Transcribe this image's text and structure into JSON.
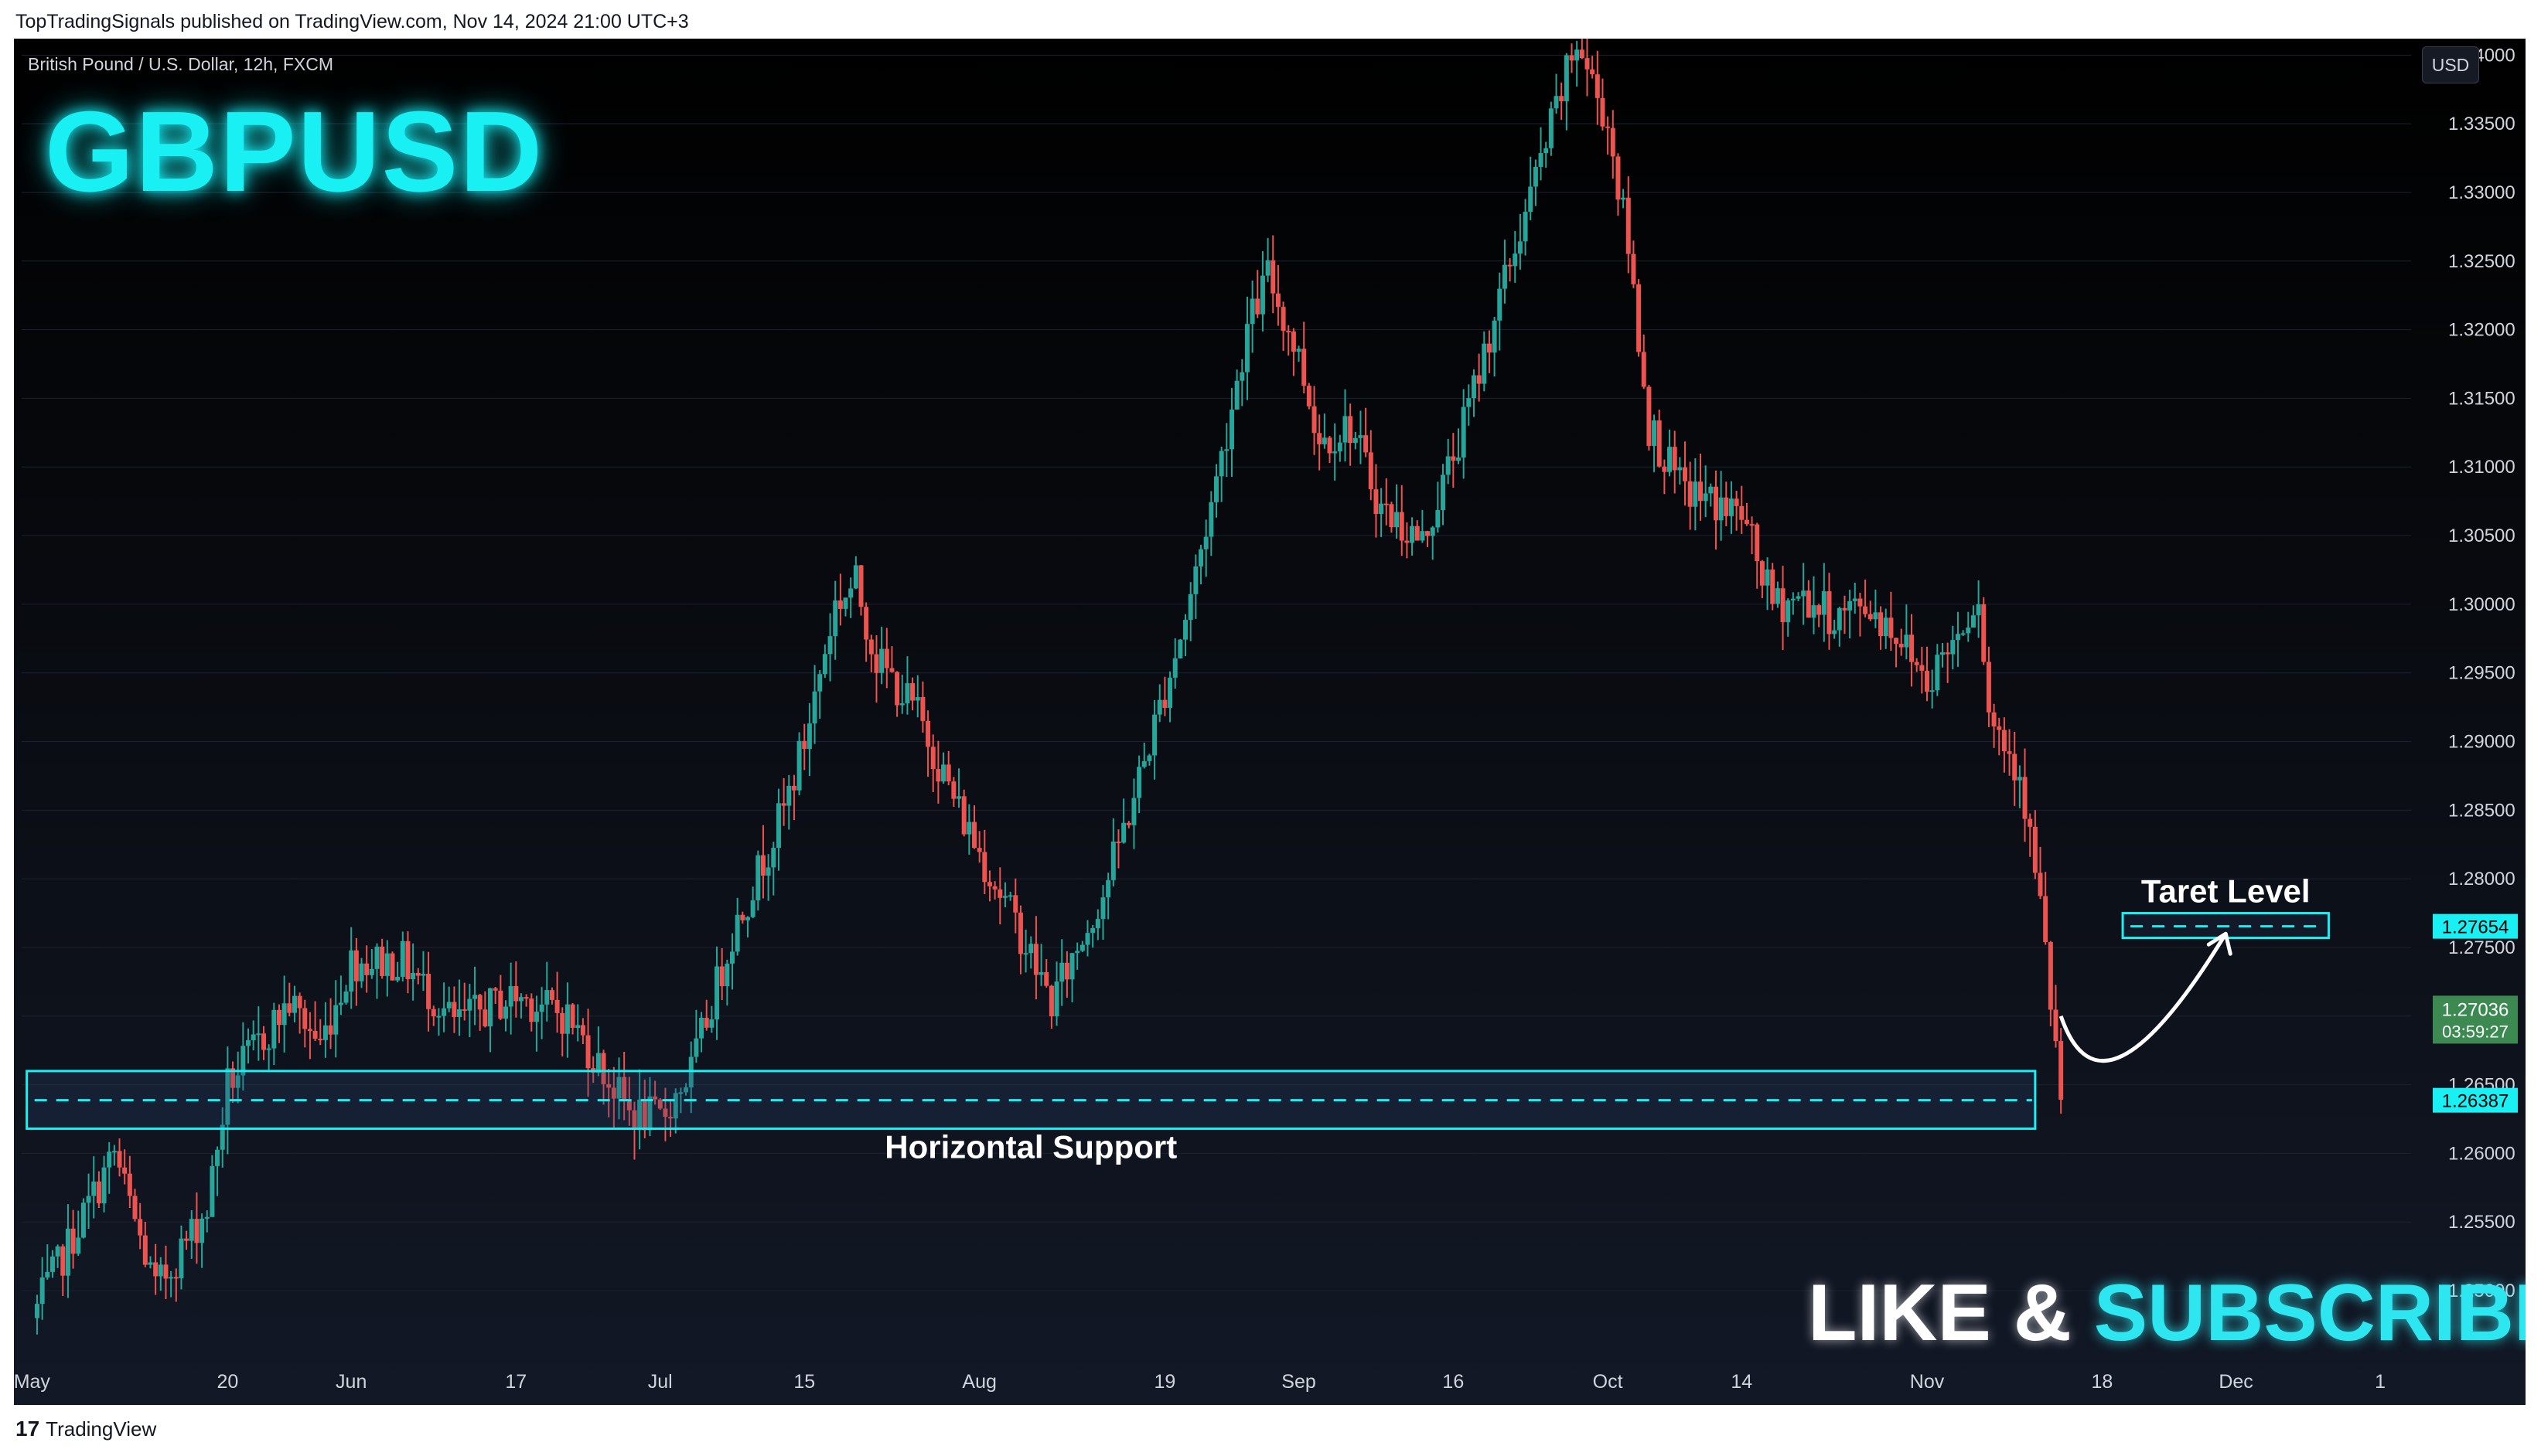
{
  "header": {
    "published": "TopTradingSignals published on TradingView.com, Nov 14, 2024 21:00 UTC+3"
  },
  "symbol_line": "British Pound / U.S. Dollar, 12h, FXCM",
  "big_title": "GBPUSD",
  "currency_button": "USD",
  "cta": {
    "part1": "LIKE & ",
    "part2": "SUBSCRIBE"
  },
  "footer": {
    "logo": "17",
    "brand": "TradingView"
  },
  "colors": {
    "up": "#26a69a",
    "down": "#ef5350",
    "accent": "#18f0f4",
    "background": "#0b0e15"
  },
  "chart_data": {
    "type": "candlestick",
    "title": "GBPUSD",
    "ylim": [
      1.2455,
      1.3412
    ],
    "y_ticks": [
      "1.34000",
      "1.33500",
      "1.33000",
      "1.32500",
      "1.32000",
      "1.31500",
      "1.31000",
      "1.30500",
      "1.30000",
      "1.29500",
      "1.29000",
      "1.28500",
      "1.28000",
      "1.27500",
      "1.27000",
      "1.26500",
      "1.26000",
      "1.25500",
      "1.25000"
    ],
    "x_ticks": [
      {
        "label": "May",
        "day": 0
      },
      {
        "label": "20",
        "day": 19
      },
      {
        "label": "Jun",
        "day": 31
      },
      {
        "label": "17",
        "day": 47
      },
      {
        "label": "Jul",
        "day": 61
      },
      {
        "label": "15",
        "day": 75
      },
      {
        "label": "Aug",
        "day": 92
      },
      {
        "label": "19",
        "day": 110
      },
      {
        "label": "Sep",
        "day": 123
      },
      {
        "label": "16",
        "day": 138
      },
      {
        "label": "Oct",
        "day": 153
      },
      {
        "label": "14",
        "day": 166
      },
      {
        "label": "Nov",
        "day": 184
      },
      {
        "label": "18",
        "day": 201
      },
      {
        "label": "Dec",
        "day": 214
      },
      {
        "label": "1",
        "day": 228
      }
    ],
    "x_range_days": [
      -1,
      231
    ],
    "key_points": [
      {
        "day": 0,
        "price": 1.248
      },
      {
        "day": 8,
        "price": 1.26
      },
      {
        "day": 12,
        "price": 1.25
      },
      {
        "day": 17,
        "price": 1.256
      },
      {
        "day": 19,
        "price": 1.265
      },
      {
        "day": 25,
        "price": 1.271
      },
      {
        "day": 28,
        "price": 1.268
      },
      {
        "day": 31,
        "price": 1.274
      },
      {
        "day": 36,
        "price": 1.274
      },
      {
        "day": 41,
        "price": 1.2695
      },
      {
        "day": 47,
        "price": 1.2715
      },
      {
        "day": 52,
        "price": 1.27
      },
      {
        "day": 58,
        "price": 1.263
      },
      {
        "day": 61,
        "price": 1.2625
      },
      {
        "day": 64,
        "price": 1.266
      },
      {
        "day": 68,
        "price": 1.276
      },
      {
        "day": 73,
        "price": 1.285
      },
      {
        "day": 75,
        "price": 1.29
      },
      {
        "day": 78,
        "price": 1.3
      },
      {
        "day": 80,
        "price": 1.3015
      },
      {
        "day": 82,
        "price": 1.296
      },
      {
        "day": 86,
        "price": 1.292
      },
      {
        "day": 90,
        "price": 1.285
      },
      {
        "day": 96,
        "price": 1.276
      },
      {
        "day": 99,
        "price": 1.271
      },
      {
        "day": 104,
        "price": 1.279
      },
      {
        "day": 107,
        "price": 1.286
      },
      {
        "day": 112,
        "price": 1.299
      },
      {
        "day": 115,
        "price": 1.309
      },
      {
        "day": 118,
        "price": 1.32
      },
      {
        "day": 120,
        "price": 1.324
      },
      {
        "day": 123,
        "price": 1.318
      },
      {
        "day": 125,
        "price": 1.312
      },
      {
        "day": 128,
        "price": 1.313
      },
      {
        "day": 131,
        "price": 1.307
      },
      {
        "day": 135,
        "price": 1.3045
      },
      {
        "day": 139,
        "price": 1.313
      },
      {
        "day": 142,
        "price": 1.321
      },
      {
        "day": 146,
        "price": 1.331
      },
      {
        "day": 150,
        "price": 1.341
      },
      {
        "day": 153,
        "price": 1.335
      },
      {
        "day": 155,
        "price": 1.326
      },
      {
        "day": 157,
        "price": 1.313
      },
      {
        "day": 160,
        "price": 1.3085
      },
      {
        "day": 166,
        "price": 1.3065
      },
      {
        "day": 169,
        "price": 1.3
      },
      {
        "day": 172,
        "price": 1.3005
      },
      {
        "day": 175,
        "price": 1.299
      },
      {
        "day": 178,
        "price": 1.3
      },
      {
        "day": 181,
        "price": 1.298
      },
      {
        "day": 184,
        "price": 1.2945
      },
      {
        "day": 187,
        "price": 1.298
      },
      {
        "day": 189,
        "price": 1.301
      },
      {
        "day": 190,
        "price": 1.292
      },
      {
        "day": 193,
        "price": 1.288
      },
      {
        "day": 195,
        "price": 1.278
      },
      {
        "day": 197,
        "price": 1.264
      }
    ],
    "support": {
      "label": "Horizontal Support",
      "price": 1.26387,
      "zone": [
        1.2618,
        1.266
      ]
    },
    "target": {
      "label": "Taret Level",
      "price": 1.27654,
      "zone": [
        1.2757,
        1.2775
      ]
    },
    "last_price": {
      "value": "1.27036",
      "countdown": "03:59:27",
      "price": 1.27036
    },
    "projection_arrow": {
      "from": {
        "day": 197,
        "price": 1.27
      },
      "via": {
        "day": 201,
        "price": 1.2635
      },
      "to": {
        "day": 213,
        "price": 1.276
      }
    }
  }
}
